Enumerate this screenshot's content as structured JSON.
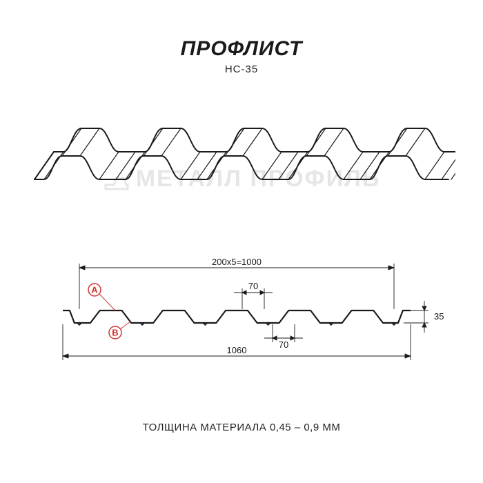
{
  "header": {
    "title": "ПРОФЛИСТ",
    "subtitle": "НС-35",
    "title_fontsize": 30,
    "subtitle_fontsize": 15,
    "title_color": "#1a1a1a"
  },
  "watermark": {
    "text": "МЕТАЛЛ ПРОФИЛЬ",
    "color": "#e6e6e6",
    "fontsize": 34
  },
  "isometric": {
    "stroke_color": "#1a1a1a",
    "stroke_width": 2,
    "background": "#ffffff"
  },
  "cross_section": {
    "type": "profile-diagram",
    "stroke_color": "#1a1a1a",
    "stroke_width": 2.2,
    "dimension_line_color": "#1a1a1a",
    "dimension_line_width": 0.9,
    "dimension_fontsize": 13,
    "pitch_label": "200x5=1000",
    "top_width_label": "70",
    "bottom_width_label": "70",
    "height_label": "35",
    "overall_width_label": "1060",
    "markers": [
      {
        "id": "A",
        "color": "#d0332f"
      },
      {
        "id": "B",
        "color": "#d0332f"
      }
    ],
    "geometry": {
      "pitch_mm": 200,
      "periods": 5,
      "useful_width_mm": 1000,
      "overall_width_mm": 1060,
      "profile_height_mm": 35,
      "top_flat_mm": 70,
      "bottom_flat_mm": 70
    }
  },
  "footer": {
    "thickness_text": "ТОЛЩИНА МАТЕРИАЛА 0,45 – 0,9 ММ",
    "fontsize": 15,
    "color": "#222222"
  }
}
